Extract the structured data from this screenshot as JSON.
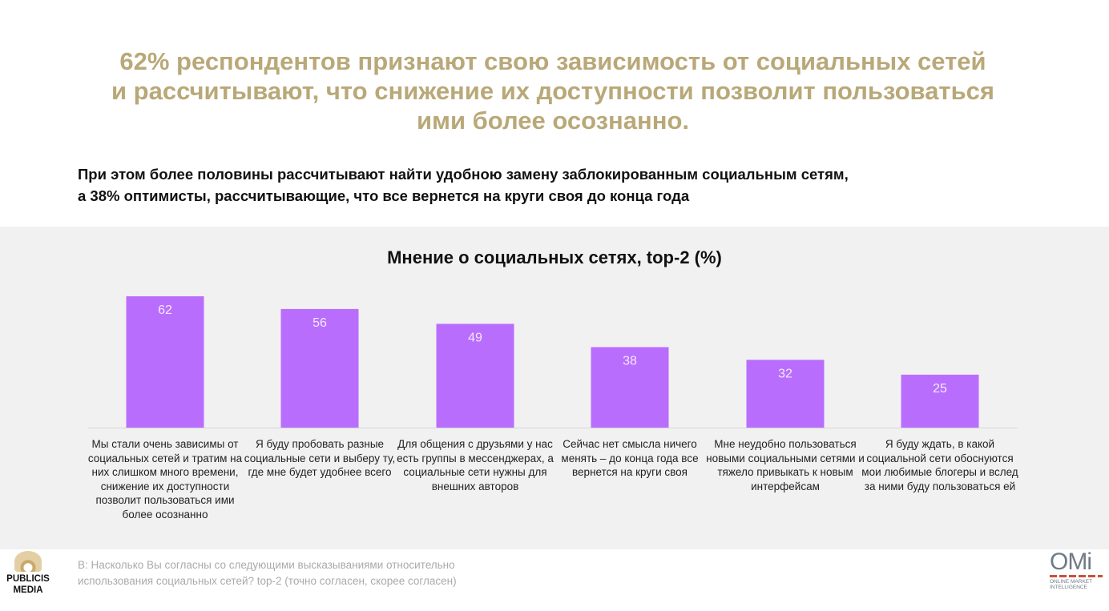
{
  "headline": [
    "62% респондентов признают свою зависимость от социальных сетей",
    "и рассчитывают, что снижение их доступности позволит пользоваться",
    "ими более осознанно."
  ],
  "subheadline": [
    "При этом более половины рассчитывают найти удобною замену заблокированным социальным сетям,",
    "а 38% оптимисты, рассчитывающие, что все вернется на круги своя до конца года"
  ],
  "colors": {
    "bar": "#b96dfd",
    "headline": "#b9a878",
    "panel": "#f2f1f2"
  },
  "chart_data": {
    "type": "bar",
    "title": "Мнение о социальных сетях, top-2 (%)",
    "categories": [
      "Мы стали очень зависимы от социальных сетей и тратим на них слишком много времени, снижение их доступности позволит пользоваться ими более осознанно",
      "Я буду пробовать разные социальные сети и выберу ту, где мне будет удобнее всего",
      "Для общения с друзьями у нас есть группы в мессенджерах, а социальные сети нужны для внешних авторов",
      "Сейчас нет смысла ничего менять – до конца года все вернется на круги своя",
      "Мне неудобно пользоваться новыми социальными сетями и тяжело привыкать к новым интерфейсам",
      "Я буду ждать, в какой социальной сети обоснуются мои любимые блогеры и вслед за ними буду пользоваться ей"
    ],
    "values": [
      62,
      56,
      49,
      38,
      32,
      25
    ],
    "data_labels": [
      "62",
      "56",
      "49",
      "38",
      "32",
      "25"
    ],
    "xlabel": "",
    "ylabel": "",
    "ylim": [
      0,
      62
    ],
    "grid": false
  },
  "footnote": [
    "В:  Насколько Вы согласны со следующими высказываниями относительно",
    "использования социальных сетей? top-2 (точно согласен, скорее согласен)"
  ],
  "logos": {
    "publicis": [
      "PUBLICIS",
      "MEDIA"
    ],
    "omi": {
      "mark": "OMi",
      "text": [
        "ONLINE MARKET",
        "INTELLIGENCE"
      ]
    }
  }
}
